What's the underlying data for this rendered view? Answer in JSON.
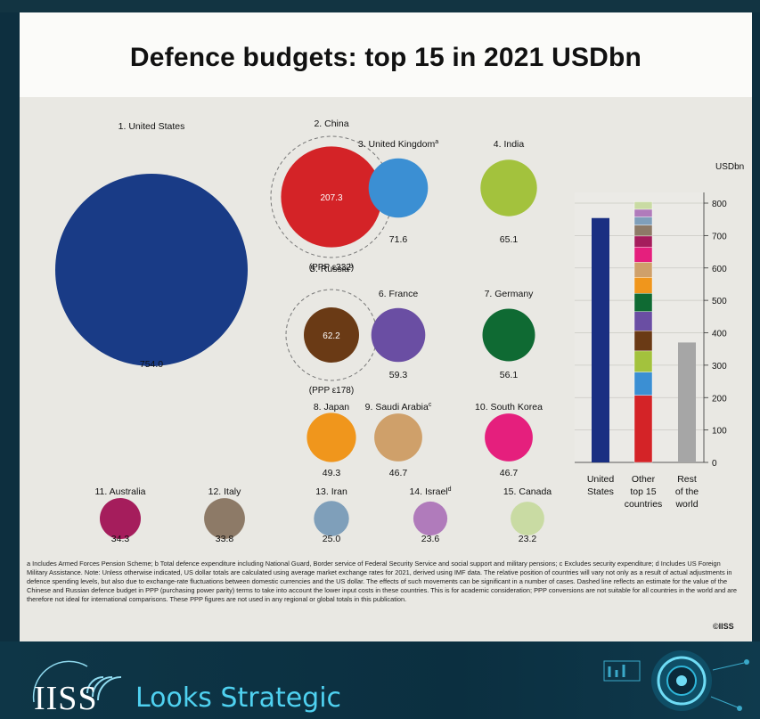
{
  "title": "Defence budgets: top 15 in 2021 USDbn",
  "chart_data": [
    {
      "type": "bubble",
      "unit": "USDbn",
      "items": [
        {
          "rank": "1.",
          "country": "United States",
          "sup": "",
          "value": 754.0,
          "value_label": "754.0",
          "color": "#193b86"
        },
        {
          "rank": "2.",
          "country": "China",
          "sup": "",
          "value": 207.3,
          "value_label": "207.3",
          "color": "#d42327",
          "ppp_label": "(PPP ε332)"
        },
        {
          "rank": "3.",
          "country": "United Kingdom",
          "sup": "a",
          "value": 71.6,
          "value_label": "71.6",
          "color": "#3b8fd3"
        },
        {
          "rank": "4.",
          "country": "India",
          "sup": "",
          "value": 65.1,
          "value_label": "65.1",
          "color": "#a3c23d"
        },
        {
          "rank": "5.",
          "country": "Russia",
          "sup": "b",
          "value": 62.2,
          "value_label": "62.2",
          "color": "#6a3a15",
          "ppp_label": "(PPP ε178)"
        },
        {
          "rank": "6.",
          "country": "France",
          "sup": "",
          "value": 59.3,
          "value_label": "59.3",
          "color": "#6a4ea3"
        },
        {
          "rank": "7.",
          "country": "Germany",
          "sup": "",
          "value": 56.1,
          "value_label": "56.1",
          "color": "#0f6a33"
        },
        {
          "rank": "8.",
          "country": "Japan",
          "sup": "",
          "value": 49.3,
          "value_label": "49.3",
          "color": "#f0961c"
        },
        {
          "rank": "9.",
          "country": "Saudi Arabia",
          "sup": "c",
          "value": 46.7,
          "value_label": "46.7",
          "color": "#cfa06a"
        },
        {
          "rank": "10.",
          "country": "South Korea",
          "sup": "",
          "value": 46.7,
          "value_label": "46.7",
          "color": "#e51f7d"
        },
        {
          "rank": "11.",
          "country": "Australia",
          "sup": "",
          "value": 34.3,
          "value_label": "34.3",
          "color": "#a51d5c"
        },
        {
          "rank": "12.",
          "country": "Italy",
          "sup": "",
          "value": 33.8,
          "value_label": "33.8",
          "color": "#8d7a67"
        },
        {
          "rank": "13.",
          "country": "Iran",
          "sup": "",
          "value": 25.0,
          "value_label": "25.0",
          "color": "#7f9fba"
        },
        {
          "rank": "14.",
          "country": "Israel",
          "sup": "d",
          "value": 23.6,
          "value_label": "23.6",
          "color": "#b07bbb"
        },
        {
          "rank": "15.",
          "country": "Canada",
          "sup": "",
          "value": 23.2,
          "value_label": "23.2",
          "color": "#c9dba3"
        }
      ]
    },
    {
      "type": "stacked_bar",
      "ylabel": "USDbn",
      "ylim": [
        0,
        800
      ],
      "yticks": [
        "0",
        "100",
        "200",
        "300",
        "400",
        "500",
        "600",
        "700",
        "800"
      ],
      "bars": [
        {
          "label": "United States",
          "total": 754.0,
          "color": "#1a2f82"
        },
        {
          "label": "Other top 15 countries",
          "stacked": true
        },
        {
          "label": "Rest of the world",
          "total": 370,
          "color": "#a6a6a6"
        }
      ]
    }
  ],
  "footnote": "a Includes Armed Forces Pension Scheme; b Total defence expenditure including National Guard, Border service of Federal Security Service and social support and military pensions; c Excludes security expenditure; d Includes US Foreign Military Assistance. Note: Unless otherwise indicated, US dollar totals are calculated using average market exchange rates for 2021, derived using IMF data. The relative position of countries will vary not only as a result of actual adjustments in defence spending levels, but also due to exchange-rate fluctuations between domestic currencies and the US dollar. The effects of such movements can be significant in a number of cases. Dashed line reflects an estimate for the value of the Chinese and Russian defence budget in PPP (purchasing power parity) terms to take into account the lower input costs in these countries. This is for academic consideration; PPP conversions are not suitable for all countries in the world and are therefore not ideal for international comparisons. These PPP figures are not used in any regional or global totals in this publication.",
  "copyright": "©IISS",
  "branding": {
    "logo_text": "IISS",
    "tagline": "Looks Strategic"
  }
}
